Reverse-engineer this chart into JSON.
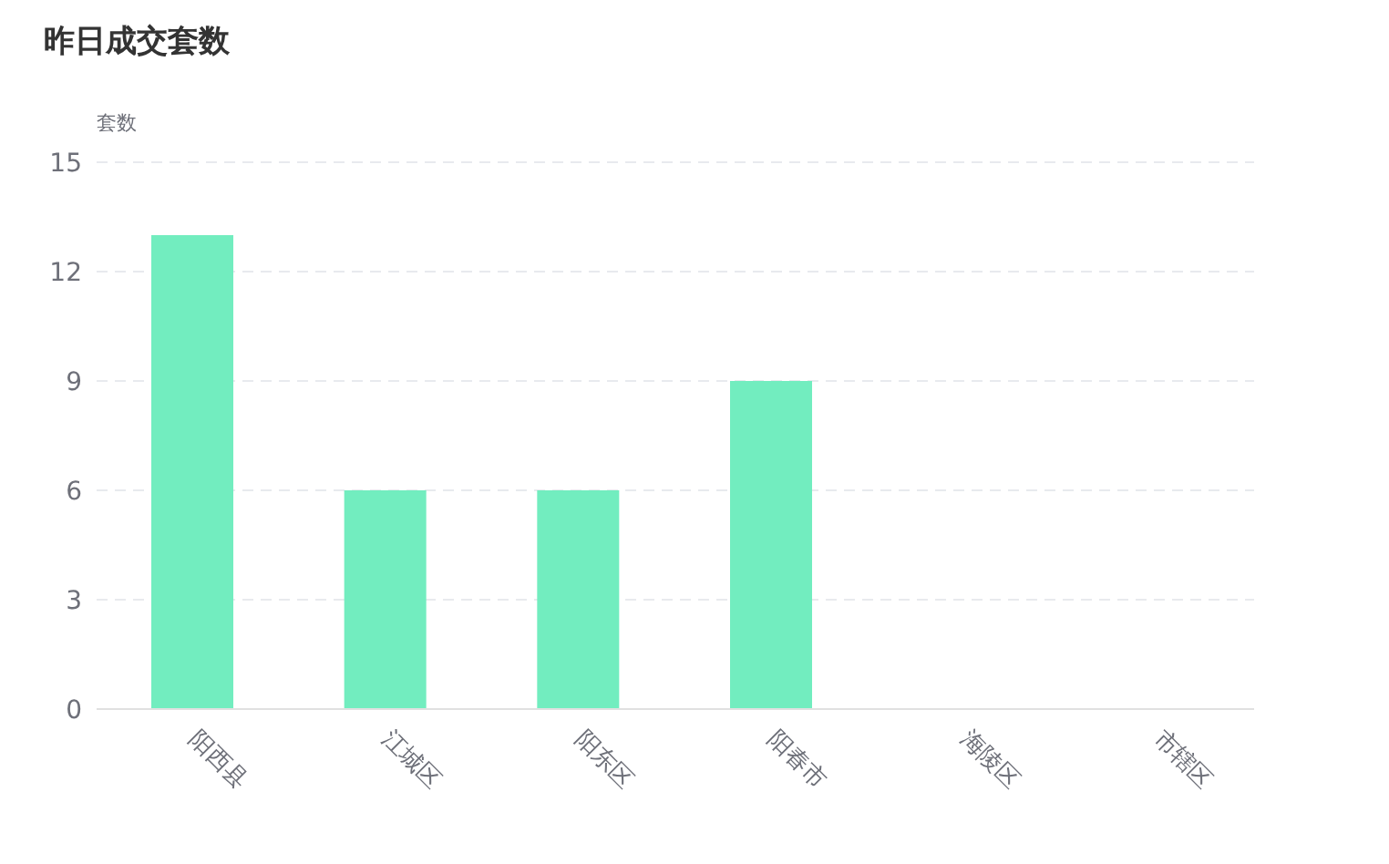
{
  "chart_data": {
    "type": "bar",
    "title": "昨日成交套数",
    "ylabel": "套数",
    "categories": [
      "阳西县",
      "江城区",
      "阳东区",
      "阳春市",
      "海陵区",
      "市辖区"
    ],
    "values": [
      13,
      6,
      6,
      9,
      0,
      0
    ],
    "color": "#72edbf",
    "ylim": [
      0,
      15
    ],
    "yticks": [
      0,
      3,
      6,
      9,
      12,
      15
    ],
    "grid": "y"
  }
}
